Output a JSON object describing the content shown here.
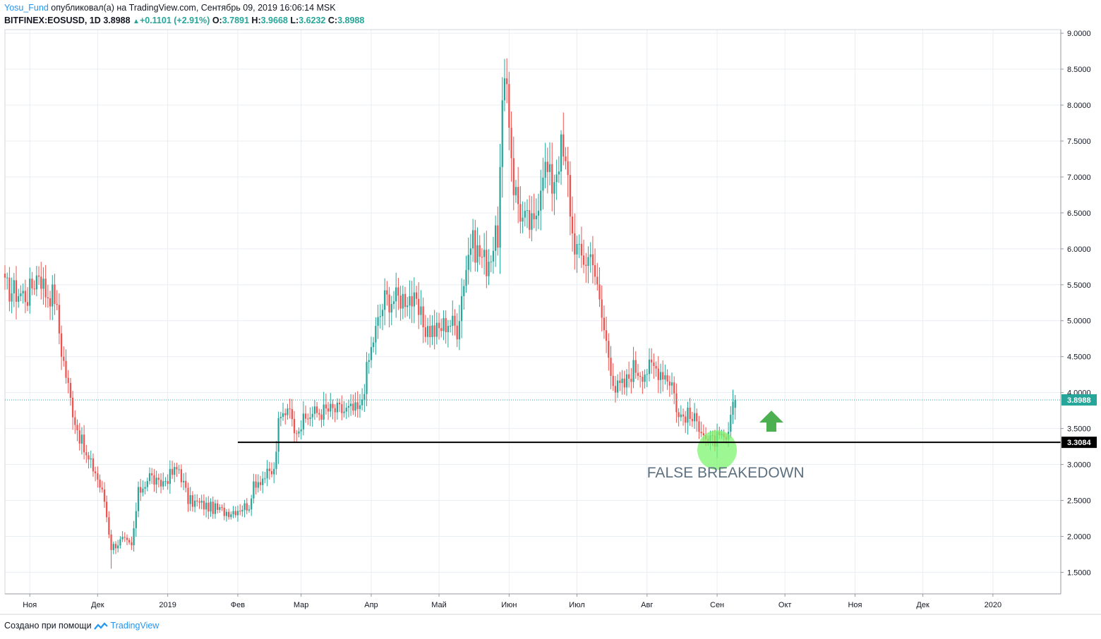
{
  "header": {
    "user": "Yosu_Fund",
    "published_text": "опубликовал(а) на TradingView.com, Сентябрь 09, 2019 16:06:14 MSK",
    "symbol": "BITFINEX:EOSUSD, 1D",
    "last": "3.8988",
    "change": "+0.1101 (+2.91%)",
    "o_label": "O:",
    "o_value": "3.7891",
    "h_label": "H:",
    "h_value": "3.9668",
    "l_label": "L:",
    "l_value": "3.6232",
    "c_label": "C:",
    "c_value": "3.8988"
  },
  "footer": {
    "prefix": "Создано при помощи",
    "brand": "TradingView"
  },
  "colors": {
    "up": "#26a69a",
    "down": "#ef5350",
    "grid": "#e9eef2",
    "level": "#000000",
    "highlight": "#7cf46e",
    "arrow": "#4caf50",
    "annotation": "#5d7080"
  },
  "chart_data": {
    "type": "candlestick",
    "title": "",
    "price_axis": {
      "min": 1.2,
      "max": 9.05,
      "ticks": [
        9.0,
        8.5,
        8.0,
        7.5,
        7.0,
        6.5,
        6.0,
        5.5,
        5.0,
        4.5,
        4.0,
        3.5,
        3.0,
        2.5,
        2.0,
        1.5
      ],
      "tick_labels": [
        "9.0000",
        "8.5000",
        "8.0000",
        "7.5000",
        "7.0000",
        "6.5000",
        "6.0000",
        "5.5000",
        "5.0000",
        "4.5000",
        "4.0000",
        "3.5000",
        "3.0000",
        "2.5000",
        "2.0000",
        "1.5000"
      ]
    },
    "time_axis": {
      "start": "2018-10-21",
      "end": "2020-01-31",
      "ticks": [
        {
          "date": "2018-11-01",
          "label": "Ноя"
        },
        {
          "date": "2018-12-01",
          "label": "Дек"
        },
        {
          "date": "2019-01-01",
          "label": "2019"
        },
        {
          "date": "2019-02-01",
          "label": "Фев"
        },
        {
          "date": "2019-03-01",
          "label": "Мар"
        },
        {
          "date": "2019-04-01",
          "label": "Апр"
        },
        {
          "date": "2019-05-01",
          "label": "Май"
        },
        {
          "date": "2019-06-01",
          "label": "Июн"
        },
        {
          "date": "2019-07-01",
          "label": "Июл"
        },
        {
          "date": "2019-08-01",
          "label": "Авг"
        },
        {
          "date": "2019-09-01",
          "label": "Сен"
        },
        {
          "date": "2019-10-01",
          "label": "Окт"
        },
        {
          "date": "2019-11-01",
          "label": "Ноя"
        },
        {
          "date": "2019-12-01",
          "label": "Дек"
        },
        {
          "date": "2020-01-01",
          "label": "2020"
        }
      ]
    },
    "daily_close_anchors": [
      [
        "2018-10-21",
        5.45
      ],
      [
        "2018-10-31",
        5.35
      ],
      [
        "2018-11-05",
        5.7
      ],
      [
        "2018-11-08",
        5.4
      ],
      [
        "2018-11-12",
        5.35
      ],
      [
        "2018-11-15",
        4.6
      ],
      [
        "2018-11-19",
        3.9
      ],
      [
        "2018-11-22",
        3.5
      ],
      [
        "2018-11-26",
        3.1
      ],
      [
        "2018-11-30",
        2.9
      ],
      [
        "2018-12-04",
        2.5
      ],
      [
        "2018-12-07",
        1.85
      ],
      [
        "2018-12-12",
        1.95
      ],
      [
        "2018-12-16",
        1.85
      ],
      [
        "2018-12-19",
        2.6
      ],
      [
        "2018-12-24",
        2.85
      ],
      [
        "2018-12-28",
        2.7
      ],
      [
        "2019-01-02",
        2.85
      ],
      [
        "2019-01-06",
        2.95
      ],
      [
        "2019-01-10",
        2.5
      ],
      [
        "2019-01-15",
        2.45
      ],
      [
        "2019-01-20",
        2.4
      ],
      [
        "2019-01-25",
        2.35
      ],
      [
        "2019-01-29",
        2.35
      ],
      [
        "2019-02-02",
        2.4
      ],
      [
        "2019-02-07",
        2.45
      ],
      [
        "2019-02-08",
        2.75
      ],
      [
        "2019-02-14",
        2.85
      ],
      [
        "2019-02-17",
        2.9
      ],
      [
        "2019-02-19",
        3.55
      ],
      [
        "2019-02-24",
        3.9
      ],
      [
        "2019-02-25",
        3.55
      ],
      [
        "2019-03-01",
        3.55
      ],
      [
        "2019-03-05",
        3.7
      ],
      [
        "2019-03-12",
        3.75
      ],
      [
        "2019-03-20",
        3.75
      ],
      [
        "2019-03-27",
        3.75
      ],
      [
        "2019-03-30",
        4.3
      ],
      [
        "2019-04-02",
        4.75
      ],
      [
        "2019-04-07",
        5.3
      ],
      [
        "2019-04-12",
        5.3
      ],
      [
        "2019-04-18",
        5.35
      ],
      [
        "2019-04-25",
        4.9
      ],
      [
        "2019-04-30",
        4.85
      ],
      [
        "2019-05-05",
        5.0
      ],
      [
        "2019-05-09",
        4.9
      ],
      [
        "2019-05-12",
        5.6
      ],
      [
        "2019-05-15",
        6.1
      ],
      [
        "2019-05-22",
        5.8
      ],
      [
        "2019-05-27",
        6.2
      ],
      [
        "2019-05-29",
        7.9
      ],
      [
        "2019-05-31",
        8.3
      ],
      [
        "2019-06-03",
        6.9
      ],
      [
        "2019-06-07",
        6.4
      ],
      [
        "2019-06-12",
        6.3
      ],
      [
        "2019-06-16",
        7.2
      ],
      [
        "2019-06-20",
        6.9
      ],
      [
        "2019-06-24",
        7.4
      ],
      [
        "2019-06-27",
        6.95
      ],
      [
        "2019-06-29",
        6.2
      ],
      [
        "2019-07-02",
        5.9
      ],
      [
        "2019-07-05",
        5.85
      ],
      [
        "2019-07-08",
        5.95
      ],
      [
        "2019-07-10",
        5.4
      ],
      [
        "2019-07-14",
        4.7
      ],
      [
        "2019-07-18",
        4.05
      ],
      [
        "2019-07-22",
        4.1
      ],
      [
        "2019-07-26",
        4.35
      ],
      [
        "2019-07-30",
        4.3
      ],
      [
        "2019-08-04",
        4.35
      ],
      [
        "2019-08-08",
        4.3
      ],
      [
        "2019-08-12",
        4.15
      ],
      [
        "2019-08-15",
        3.65
      ],
      [
        "2019-08-18",
        3.7
      ],
      [
        "2019-08-22",
        3.6
      ],
      [
        "2019-08-25",
        3.55
      ],
      [
        "2019-08-28",
        3.3
      ],
      [
        "2019-09-01",
        3.35
      ],
      [
        "2019-09-05",
        3.3
      ],
      [
        "2019-09-07",
        3.6
      ],
      [
        "2019-09-09",
        3.8988
      ]
    ],
    "notable_extremes": [
      {
        "date": "2018-12-07",
        "low": 1.55
      },
      {
        "date": "2019-05-31",
        "high": 8.65
      },
      {
        "date": "2019-06-24",
        "high": 7.65
      }
    ],
    "horizontal_level": {
      "value": 3.3084,
      "label": "3.3084",
      "from": "2019-02-01"
    },
    "last_price": {
      "value": 3.8988,
      "label": "3.8988"
    },
    "annotations": [
      {
        "type": "circle",
        "date": "2019-09-01",
        "price": 3.2
      },
      {
        "type": "up-arrow",
        "date": "2019-09-25",
        "price": 3.75
      },
      {
        "type": "text",
        "text": "FALSE BREAKEDOWN",
        "date": "2019-08-01",
        "price": 2.82
      }
    ]
  }
}
